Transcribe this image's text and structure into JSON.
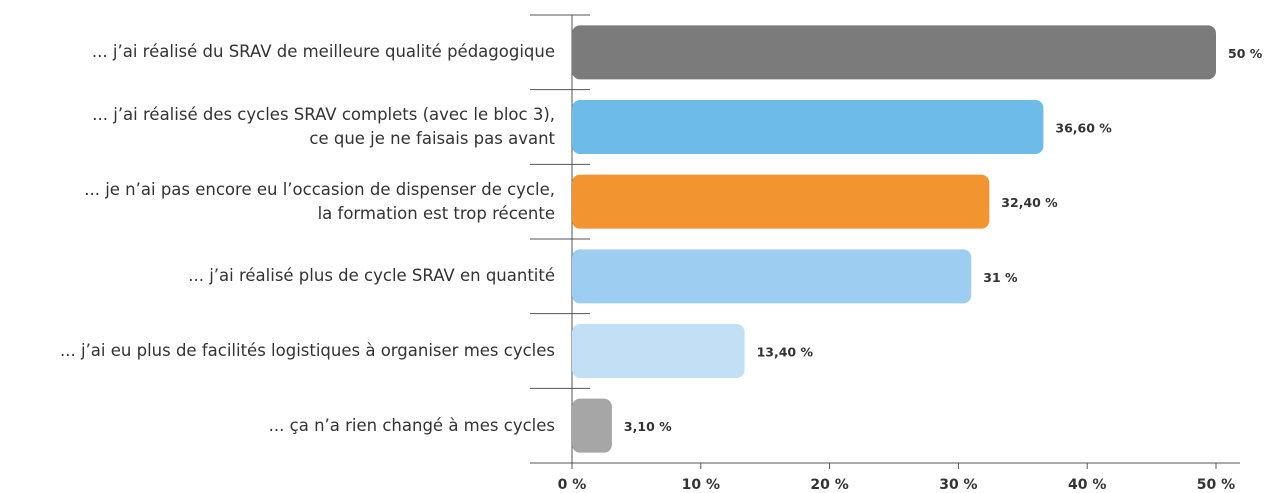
{
  "chart_data": {
    "type": "bar",
    "orientation": "horizontal",
    "categories": [
      "... j’ai réalisé du SRAV de meilleure qualité pédagogique",
      "... j’ai réalisé des cycles SRAV complets (avec le bloc 3),\nce que je ne faisais pas avant",
      "... je n’ai pas encore eu l’occasion de dispenser de cycle,\nla formation est trop récente",
      "... j’ai réalisé plus de cycle SRAV en quantité",
      "... j’ai eu plus de facilités logistiques à organiser mes cycles",
      "... ça n’a rien changé à mes cycles"
    ],
    "values": [
      50,
      36.6,
      32.4,
      31,
      13.4,
      3.1
    ],
    "value_labels": [
      "50 %",
      "36,60 %",
      "32,40 %",
      "31 %",
      "13,40 %",
      "3,10 %"
    ],
    "colors": [
      "#7b7b7b",
      "#6dbbe8",
      "#f29430",
      "#9dcdf0",
      "#c2dff5",
      "#a6a6a6"
    ],
    "xlim": [
      0,
      50
    ],
    "xticks": [
      {
        "value": 0,
        "label": "0 %"
      },
      {
        "value": 10,
        "label": "10 %"
      },
      {
        "value": 20,
        "label": "20 %"
      },
      {
        "value": 30,
        "label": "30 %"
      },
      {
        "value": 40,
        "label": "40 %"
      },
      {
        "value": 50,
        "label": "50 %"
      }
    ]
  }
}
